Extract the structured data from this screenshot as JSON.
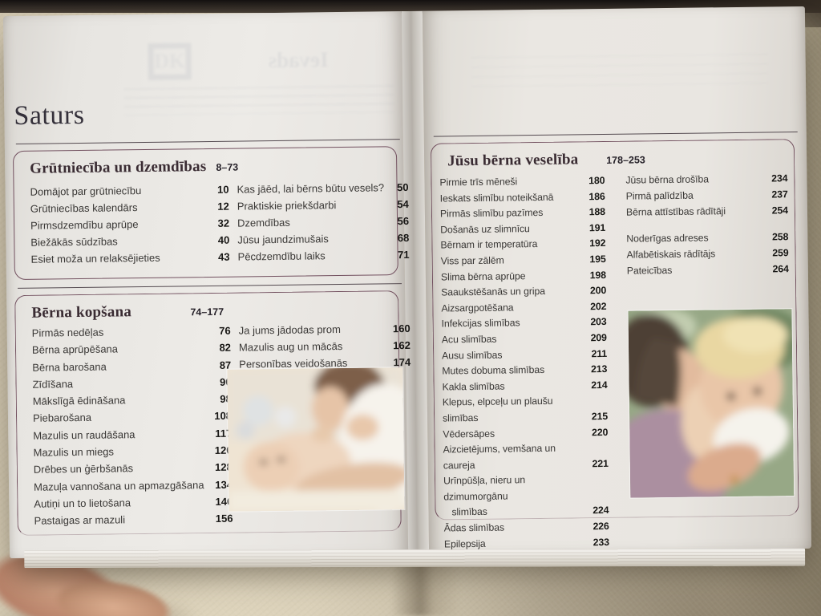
{
  "page_title": "Saturs",
  "bleedthrough": {
    "logo": "DK",
    "ievads": "Ievads"
  },
  "colors": {
    "box_border_plum": "#72505f",
    "rule_line": "#544a50",
    "section_title_text": "#3a2c33",
    "entry_text": "#3a3836",
    "page_number_text": "#181715",
    "paper": "#eae7e2",
    "couch_fabric": "#c9bfa8"
  },
  "sections": [
    {
      "title": "Grūtniecība un dzemdības",
      "pages": "8–73",
      "col1": [
        {
          "label": "Domājot par grūtniecību",
          "page": "10"
        },
        {
          "label": "Grūtniecības kalendārs",
          "page": "12"
        },
        {
          "label": "Pirmsdzemdību aprūpe",
          "page": "32"
        },
        {
          "label": "Biežākās sūdzības",
          "page": "40"
        },
        {
          "label": "Esiet moža un relaksējieties",
          "page": "43"
        }
      ],
      "col2": [
        {
          "label": "Kas jāēd, lai bērns būtu vesels?",
          "page": "50"
        },
        {
          "label": "Praktiskie priekšdarbi",
          "page": "54"
        },
        {
          "label": "Dzemdības",
          "page": "56"
        },
        {
          "label": "Jūsu jaundzimušais",
          "page": "68"
        },
        {
          "label": "Pēcdzemdību laiks",
          "page": "71"
        }
      ]
    },
    {
      "title": "Bērna kopšana",
      "pages": "74–177",
      "col1": [
        {
          "label": "Pirmās nedēļas",
          "page": "76"
        },
        {
          "label": "Bērna aprūpēšana",
          "page": "82"
        },
        {
          "label": "Bērna barošana",
          "page": "87"
        },
        {
          "label": "Zīdīšana",
          "page": "90"
        },
        {
          "label": "Mākslīgā ēdināšana",
          "page": "98"
        },
        {
          "label": "Piebarošana",
          "page": "108"
        },
        {
          "label": "Mazulis un raudāšana",
          "page": "117"
        },
        {
          "label": "Mazulis un miegs",
          "page": "120"
        },
        {
          "label": "Drēbes un ģērbšanās",
          "page": "128"
        },
        {
          "label": "Mazuļa vannošana un apmazgāšana",
          "page": "134"
        },
        {
          "label": "Autiņi un to lietošana",
          "page": "146"
        },
        {
          "label": "Pastaigas ar mazuli",
          "page": "156"
        }
      ],
      "col2": [
        {
          "label": "Ja jums jādodas prom",
          "page": "160"
        },
        {
          "label": "Mazulis aug un mācās",
          "page": "162"
        },
        {
          "label": "Personības veidošanās",
          "page": "174"
        }
      ],
      "photo_alt": "mother leaning over newborn baby"
    },
    {
      "title": "Jūsu bērna veselība",
      "pages": "178–253",
      "col1": [
        {
          "label": "Pirmie trīs mēneši",
          "page": "180"
        },
        {
          "label": "Ieskats slimību noteikšanā",
          "page": "186"
        },
        {
          "label": "Pirmās slimību pazīmes",
          "page": "188"
        },
        {
          "label": "Došanās uz slimnīcu",
          "page": "191"
        },
        {
          "label": "Bērnam ir temperatūra",
          "page": "192"
        },
        {
          "label": "Viss par zālēm",
          "page": "195"
        },
        {
          "label": "Slima bērna aprūpe",
          "page": "198"
        },
        {
          "label": "Saaukstēšanās un gripa",
          "page": "200"
        },
        {
          "label": "Aizsargpotēšana",
          "page": "202"
        },
        {
          "label": "Infekcijas slimības",
          "page": "203"
        },
        {
          "label": "Acu slimības",
          "page": "209"
        },
        {
          "label": "Ausu slimības",
          "page": "211"
        },
        {
          "label": "Mutes dobuma slimības",
          "page": "213"
        },
        {
          "label": "Kakla slimības",
          "page": "214"
        },
        {
          "label": "Klepus, elpceļu un plaušu slimības",
          "page": "215"
        },
        {
          "label": "Vēdersāpes",
          "page": "220"
        },
        {
          "label": "Aizcietējums, vemšana un caureja",
          "page": "221"
        },
        {
          "label": "Urīnpūšļa, nieru un dzimumorgānu\n   slimības",
          "page": "224"
        },
        {
          "label": "Ādas slimības",
          "page": "226"
        },
        {
          "label": "Epilepsija",
          "page": "233"
        }
      ],
      "col2_group1": [
        {
          "label": "Jūsu bērna drošība",
          "page": "234"
        },
        {
          "label": "Pirmā palīdzība",
          "page": "237"
        },
        {
          "label": "Bērna attīstības rādītāji",
          "page": "254"
        }
      ],
      "col2_group2": [
        {
          "label": "Noderīgas adreses",
          "page": "258"
        },
        {
          "label": "Alfabētiskais rādītājs",
          "page": "259"
        },
        {
          "label": "Pateicības",
          "page": "264"
        }
      ],
      "photo_alt": "mother wiping toddler's nose with tissue"
    }
  ]
}
